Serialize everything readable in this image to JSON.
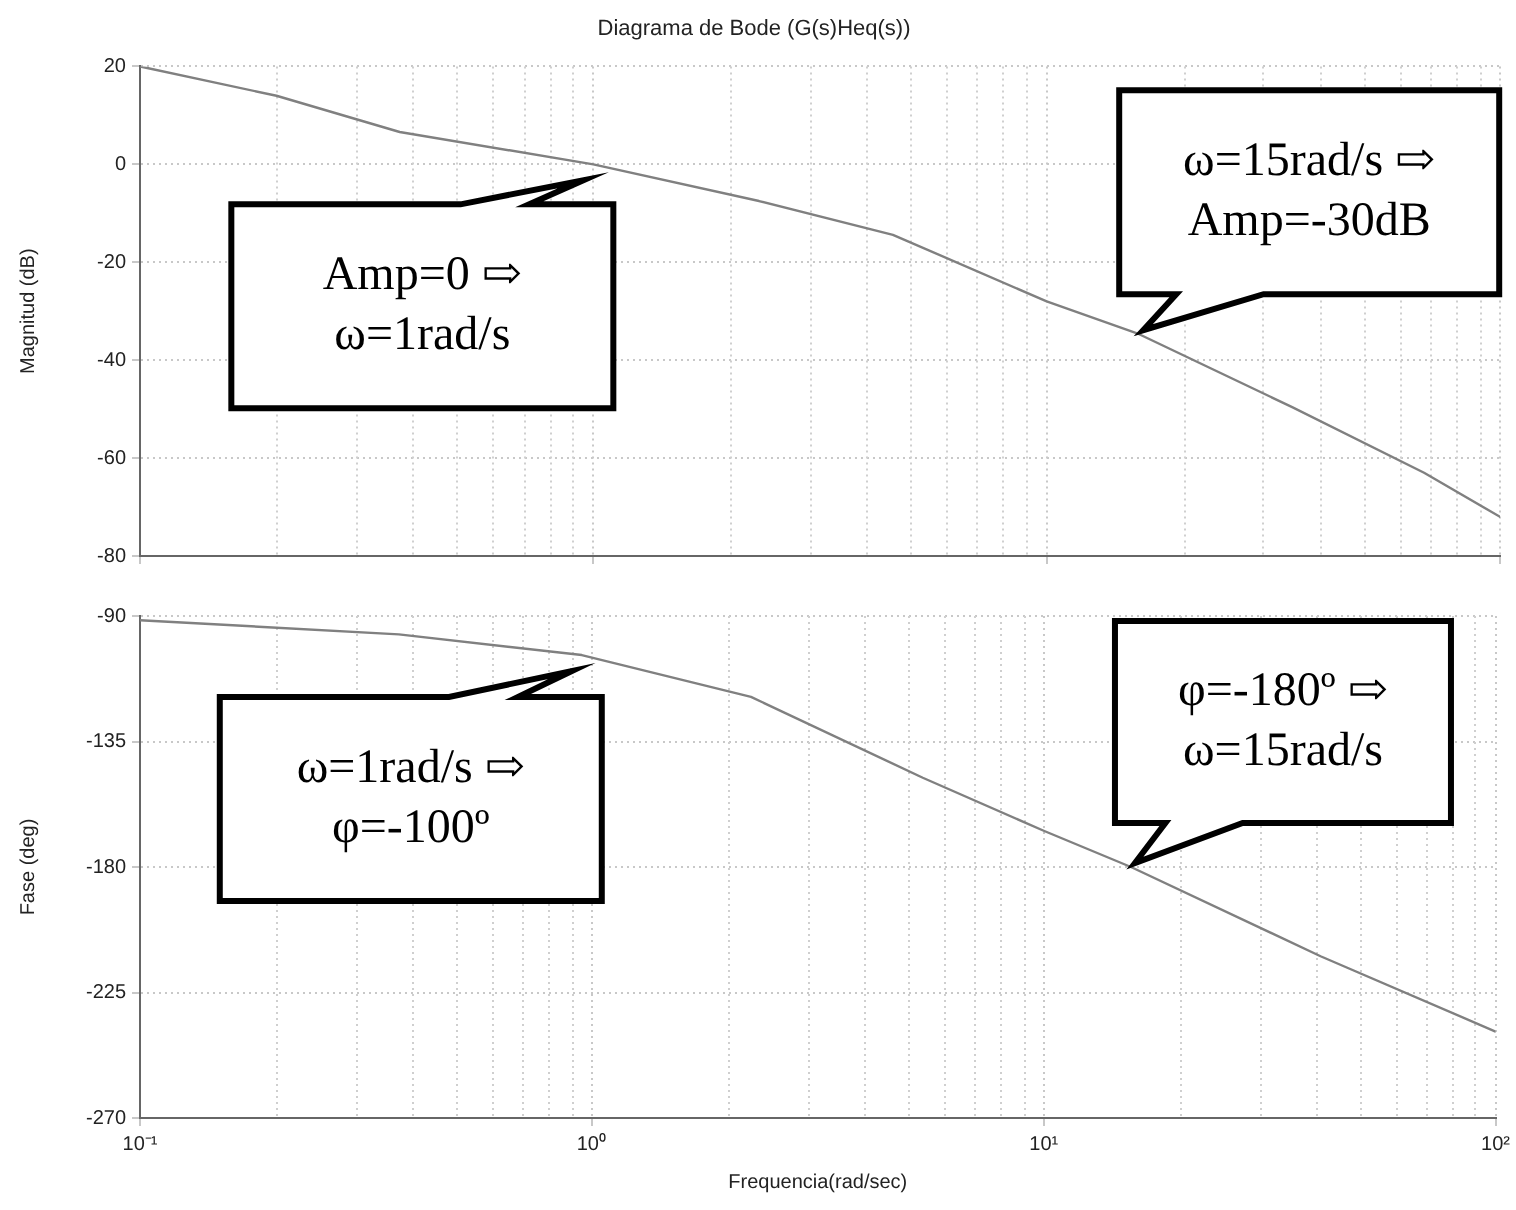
{
  "chart_data": [
    {
      "type": "line",
      "title": "Diagrama de Bode (G(s)Heq(s))",
      "ylabel": "Magnitud (dB)",
      "log": "x",
      "grid": true,
      "tick_labels": "y",
      "color": "#808080",
      "line_style": "solid",
      "x": [
        0.1,
        0.2,
        0.374,
        1,
        2.32,
        4.58,
        10,
        16,
        34.8,
        68,
        100
      ],
      "values": [
        20,
        14,
        6.6,
        0,
        -7.5,
        -14.4,
        -28,
        -34.7,
        -49.6,
        -63,
        -72
      ],
      "xlim": [
        0.1,
        100
      ],
      "xticks": [
        {
          "value": 0.1,
          "label": null
        },
        {
          "value": 1,
          "label": null
        },
        {
          "value": 10,
          "label": null
        },
        {
          "value": 100,
          "label": null
        }
      ],
      "ylim": [
        -80,
        20
      ],
      "yticks": [
        -80,
        -60,
        -40,
        -20,
        0,
        20
      ],
      "annotations": [
        {
          "text": "Amp=0 ⇨\nω=1rad/s",
          "x": 1,
          "y": 0
        },
        {
          "text": "ω=15rad/s ⇨\nAmp=-30dB",
          "x": 16,
          "y": -34.7
        }
      ]
    },
    {
      "type": "line",
      "xlabel": "Frequencia(rad/sec)",
      "ylabel": "Fase (deg)",
      "log": "x",
      "grid": true,
      "color": "#808080",
      "line_style": "solid",
      "x": [
        0.1,
        0.374,
        0.95,
        2.25,
        5.4,
        10,
        15.6,
        41,
        100
      ],
      "values": [
        -91.5,
        -96.6,
        -104,
        -119,
        -148,
        -167,
        -180,
        -212,
        -239
      ],
      "xlim": [
        0.1,
        100
      ],
      "xticks": [
        {
          "value": 0.1,
          "label": "10⁻¹"
        },
        {
          "value": 1,
          "label": "10⁰"
        },
        {
          "value": 10,
          "label": "10¹"
        },
        {
          "value": 100,
          "label": "10²"
        }
      ],
      "ylim": [
        -270,
        -90
      ],
      "yticks": [
        -270,
        -225,
        -180,
        -135,
        -90
      ],
      "annotations": [
        {
          "text": "ω=1rad/s ⇨\nφ=-100º",
          "x": 0.95,
          "y": -104
        },
        {
          "text": "φ=-180º ⇨\nω=15rad/s",
          "x": 15.6,
          "y": -180
        }
      ]
    }
  ]
}
